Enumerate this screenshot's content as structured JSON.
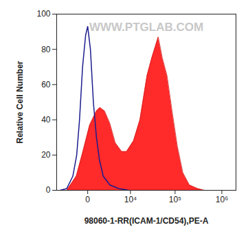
{
  "chart_data": {
    "type": "histogram",
    "x_label": "98060-1-RR(ICAM-1/CD54),PE-A",
    "y_label": "Relative Cell Number",
    "annotations": [
      {
        "text": "WWW.PTGLAB.COM"
      }
    ],
    "log": "x",
    "xlim": [
      -5000,
      2000000
    ],
    "xticks": [
      0,
      {
        "value": 10000,
        "label": "10⁴"
      },
      {
        "value": 100000,
        "label": "10⁵"
      },
      {
        "value": 1000000,
        "label": "10⁶"
      }
    ],
    "ylim": [
      0,
      100
    ],
    "yticks": [
      0,
      20,
      40,
      60,
      80,
      100
    ],
    "series": [
      {
        "type": "area",
        "color": "#ff2a2a",
        "x": [
          -2500,
          -1050,
          -370,
          140,
          750,
          1150,
          1800,
          2750,
          4000,
          6000,
          8000,
          11800,
          16700,
          24200,
          30800,
          43000,
          53000,
          67000,
          86000,
          112000,
          147000,
          203000,
          303000,
          420000
        ],
        "values": [
          0,
          8,
          22,
          37,
          45,
          47,
          45,
          38,
          27,
          22,
          22,
          28,
          40,
          65,
          75,
          87,
          75,
          65,
          45,
          25,
          10,
          3,
          1,
          0
        ]
      },
      {
        "type": "line",
        "color": "#1c1c8f",
        "x": [
          -4000,
          -2500,
          -1500,
          -1000,
          -690,
          -400,
          -150,
          0,
          200,
          450,
          750,
          1100,
          1600,
          2750,
          5000,
          9000
        ],
        "values": [
          0,
          1,
          8,
          20,
          40,
          70,
          88,
          93,
          80,
          50,
          30,
          17,
          8,
          3,
          1,
          0
        ]
      }
    ]
  }
}
